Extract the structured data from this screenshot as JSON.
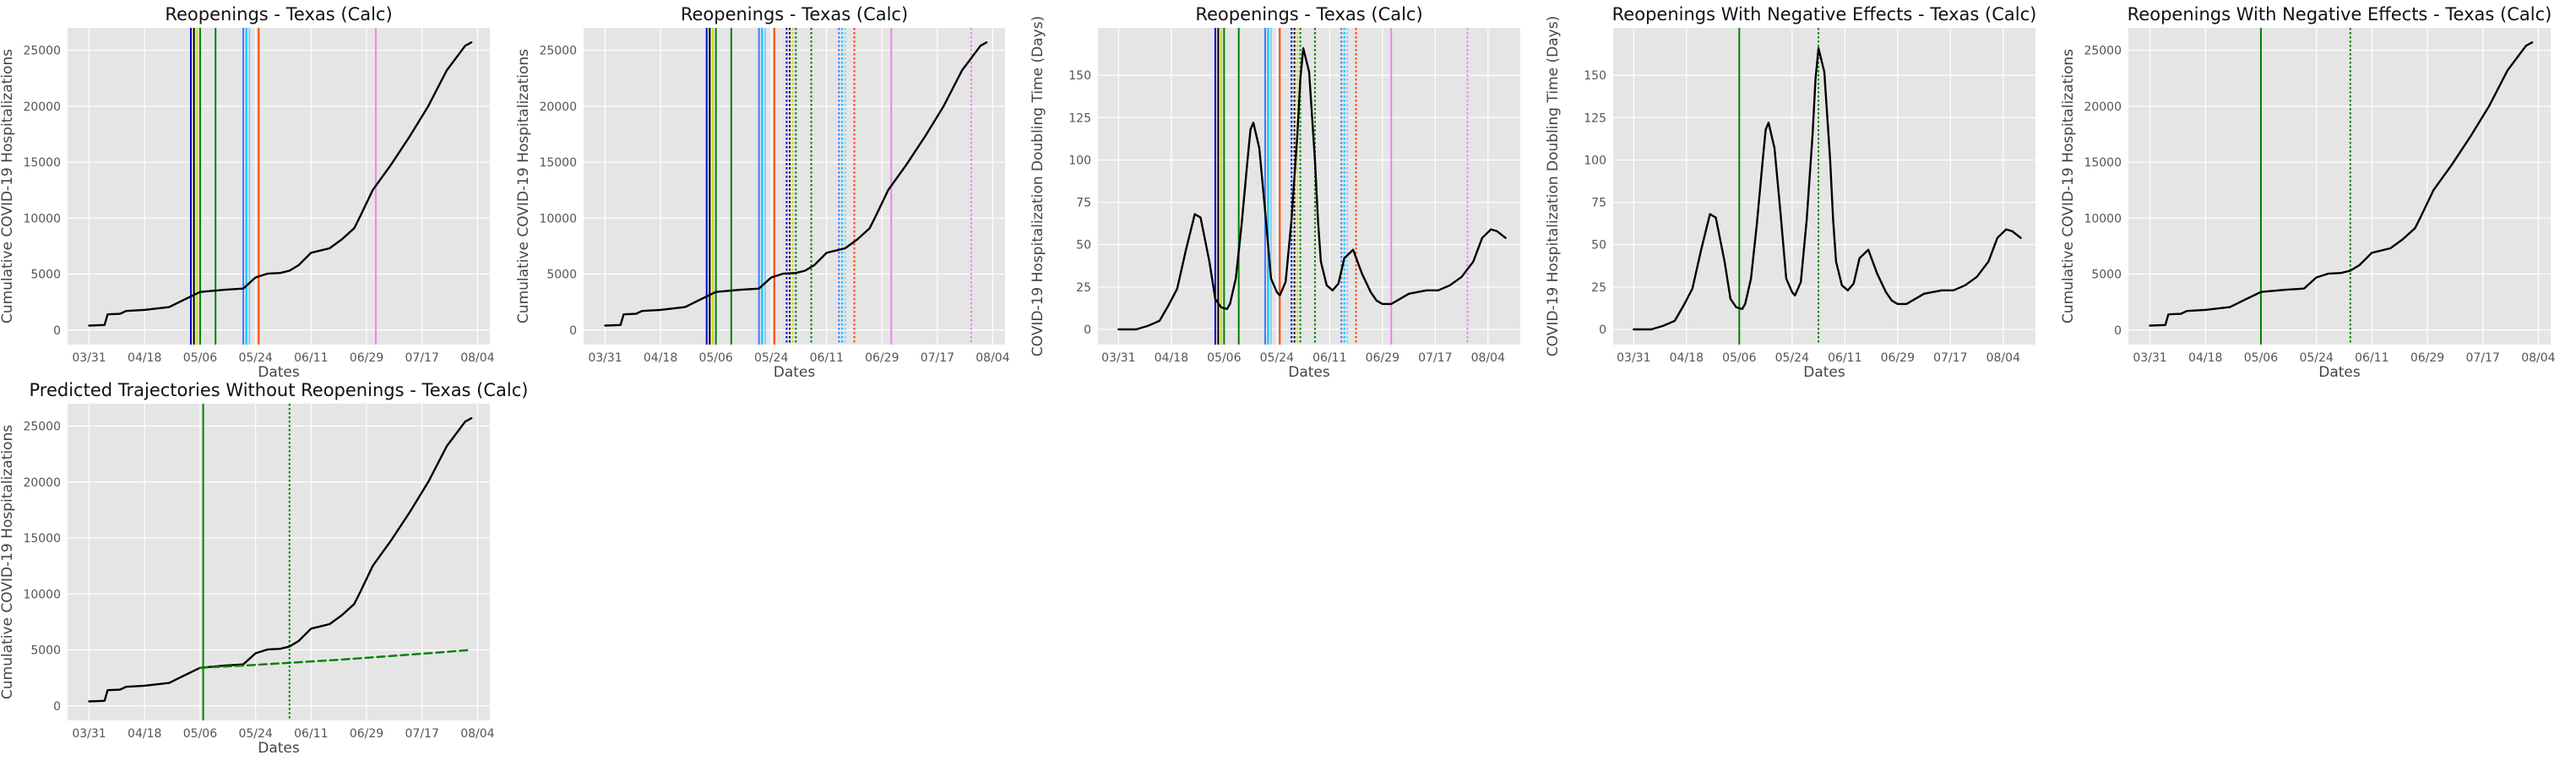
{
  "chart_data": [
    {
      "id": "p1",
      "type": "line",
      "title": "Reopenings - Texas (Calc)",
      "xlabel": "Dates",
      "ylabel": "Cumulative COVID-19 Hospitalizations",
      "x_tick_labels": [
        "03/31",
        "04/18",
        "05/06",
        "05/24",
        "06/11",
        "06/29",
        "07/17",
        "08/04"
      ],
      "x_tick_day_offsets": [
        0,
        18,
        36,
        54,
        72,
        90,
        108,
        126
      ],
      "xlim_days": [
        -7,
        130
      ],
      "yticks": [
        0,
        5000,
        10000,
        15000,
        20000,
        25000
      ],
      "ylim": [
        -1300,
        27000
      ],
      "grid": true,
      "series": [
        {
          "color": "#000000",
          "style": "solid",
          "days": [
            0,
            5,
            6,
            10,
            12,
            18,
            26,
            30,
            36,
            44,
            50,
            54,
            58,
            62,
            65,
            68,
            72,
            78,
            82,
            86,
            88,
            92,
            98,
            104,
            110,
            116,
            122,
            124
          ],
          "values": [
            400,
            450,
            1400,
            1450,
            1700,
            1800,
            2050,
            2600,
            3400,
            3600,
            3700,
            4700,
            5050,
            5100,
            5300,
            5800,
            6900,
            7300,
            8100,
            9100,
            10200,
            12500,
            14800,
            17300,
            20000,
            23200,
            25400,
            25700
          ]
        }
      ],
      "vlines": [
        {
          "day": 33,
          "color": "#0000cc",
          "style": "solid"
        },
        {
          "day": 34,
          "color": "#000000",
          "style": "solid"
        },
        {
          "day": 35,
          "color": "#ccdd00",
          "style": "solid"
        },
        {
          "day": 36,
          "color": "#008000",
          "style": "solid"
        },
        {
          "day": 41,
          "color": "#008000",
          "style": "solid"
        },
        {
          "day": 50,
          "color": "#4477ff",
          "style": "solid"
        },
        {
          "day": 51,
          "color": "#00bfff",
          "style": "solid"
        },
        {
          "day": 52,
          "color": "#87cefa",
          "style": "solid"
        },
        {
          "day": 55,
          "color": "#ff4400",
          "style": "solid"
        },
        {
          "day": 93,
          "color": "#ee82ee",
          "style": "solid"
        }
      ]
    },
    {
      "id": "p2",
      "type": "line",
      "title": "Reopenings - Texas (Calc)",
      "xlabel": "Dates",
      "ylabel": "Cumulative COVID-19 Hospitalizations",
      "x_tick_labels": [
        "03/31",
        "04/18",
        "05/06",
        "05/24",
        "06/11",
        "06/29",
        "07/17",
        "08/04"
      ],
      "x_tick_day_offsets": [
        0,
        18,
        36,
        54,
        72,
        90,
        108,
        126
      ],
      "xlim_days": [
        -7,
        130
      ],
      "yticks": [
        0,
        5000,
        10000,
        15000,
        20000,
        25000
      ],
      "ylim": [
        -1300,
        27000
      ],
      "grid": true,
      "series": [
        {
          "color": "#000000",
          "style": "solid",
          "days": [
            0,
            5,
            6,
            10,
            12,
            18,
            26,
            30,
            36,
            44,
            50,
            54,
            58,
            62,
            65,
            68,
            72,
            78,
            82,
            86,
            88,
            92,
            98,
            104,
            110,
            116,
            122,
            124
          ],
          "values": [
            400,
            450,
            1400,
            1450,
            1700,
            1800,
            2050,
            2600,
            3400,
            3600,
            3700,
            4700,
            5050,
            5100,
            5300,
            5800,
            6900,
            7300,
            8100,
            9100,
            10200,
            12500,
            14800,
            17300,
            20000,
            23200,
            25400,
            25700
          ]
        }
      ],
      "vlines": [
        {
          "day": 33,
          "color": "#0000cc",
          "style": "solid"
        },
        {
          "day": 34,
          "color": "#000000",
          "style": "solid"
        },
        {
          "day": 35,
          "color": "#ccdd00",
          "style": "solid"
        },
        {
          "day": 36,
          "color": "#008000",
          "style": "solid"
        },
        {
          "day": 41,
          "color": "#008000",
          "style": "solid"
        },
        {
          "day": 50,
          "color": "#4477ff",
          "style": "solid"
        },
        {
          "day": 51,
          "color": "#00bfff",
          "style": "solid"
        },
        {
          "day": 52,
          "color": "#87cefa",
          "style": "solid"
        },
        {
          "day": 55,
          "color": "#ff4400",
          "style": "solid"
        },
        {
          "day": 59,
          "color": "#0000cc",
          "style": "dotted"
        },
        {
          "day": 60,
          "color": "#000000",
          "style": "dotted"
        },
        {
          "day": 61,
          "color": "#ccdd00",
          "style": "dotted"
        },
        {
          "day": 62,
          "color": "#008000",
          "style": "dotted"
        },
        {
          "day": 67,
          "color": "#008000",
          "style": "dotted"
        },
        {
          "day": 76,
          "color": "#4477ff",
          "style": "dotted"
        },
        {
          "day": 77,
          "color": "#00bfff",
          "style": "dotted"
        },
        {
          "day": 78,
          "color": "#87cefa",
          "style": "dotted"
        },
        {
          "day": 81,
          "color": "#ff4400",
          "style": "dotted"
        },
        {
          "day": 93,
          "color": "#ee82ee",
          "style": "solid"
        },
        {
          "day": 119,
          "color": "#ee82ee",
          "style": "dotted"
        }
      ]
    },
    {
      "id": "p3",
      "type": "line",
      "title": "Reopenings - Texas (Calc)",
      "xlabel": "Dates",
      "ylabel": "COVID-19 Hospitalization Doubling Time (Days)",
      "x_tick_labels": [
        "03/31",
        "04/18",
        "05/06",
        "05/24",
        "06/11",
        "06/29",
        "07/17",
        "08/04"
      ],
      "x_tick_day_offsets": [
        0,
        18,
        36,
        54,
        72,
        90,
        108,
        126
      ],
      "xlim_days": [
        -7,
        137
      ],
      "yticks": [
        0,
        25,
        50,
        75,
        100,
        125,
        150
      ],
      "ylim": [
        -9,
        178
      ],
      "grid": true,
      "series": [
        {
          "color": "#000000",
          "style": "solid",
          "days": [
            0,
            6,
            10,
            14,
            17,
            20,
            23,
            26,
            28,
            31,
            33,
            35,
            37,
            38,
            40,
            42,
            44,
            45,
            46,
            48,
            50,
            52,
            54,
            55,
            57,
            59,
            61,
            62,
            63,
            65,
            67,
            68,
            69,
            71,
            73,
            75,
            77,
            80,
            83,
            86,
            88,
            90,
            93,
            96,
            99,
            102,
            105,
            109,
            113,
            117,
            121,
            124,
            127,
            129,
            132
          ],
          "values": [
            0,
            0,
            2,
            5,
            14,
            24,
            47,
            68,
            66,
            40,
            18,
            13,
            12,
            15,
            30,
            62,
            100,
            118,
            122,
            107,
            70,
            30,
            22,
            20,
            28,
            65,
            115,
            148,
            166,
            152,
            100,
            65,
            40,
            26,
            23,
            27,
            42,
            47,
            33,
            22,
            17,
            15,
            15,
            18,
            21,
            22,
            23,
            23,
            26,
            31,
            40,
            54,
            59,
            58,
            54
          ]
        }
      ],
      "vlines": [
        {
          "day": 33,
          "color": "#0000cc",
          "style": "solid"
        },
        {
          "day": 34,
          "color": "#000000",
          "style": "solid"
        },
        {
          "day": 35,
          "color": "#ccdd00",
          "style": "solid"
        },
        {
          "day": 36,
          "color": "#008000",
          "style": "solid"
        },
        {
          "day": 41,
          "color": "#008000",
          "style": "solid"
        },
        {
          "day": 50,
          "color": "#4477ff",
          "style": "solid"
        },
        {
          "day": 51,
          "color": "#00bfff",
          "style": "solid"
        },
        {
          "day": 52,
          "color": "#87cefa",
          "style": "solid"
        },
        {
          "day": 55,
          "color": "#ff4400",
          "style": "solid"
        },
        {
          "day": 59,
          "color": "#0000cc",
          "style": "dotted"
        },
        {
          "day": 60,
          "color": "#000000",
          "style": "dotted"
        },
        {
          "day": 61,
          "color": "#ccdd00",
          "style": "dotted"
        },
        {
          "day": 62,
          "color": "#008000",
          "style": "dotted"
        },
        {
          "day": 67,
          "color": "#008000",
          "style": "dotted"
        },
        {
          "day": 76,
          "color": "#4477ff",
          "style": "dotted"
        },
        {
          "day": 77,
          "color": "#00bfff",
          "style": "dotted"
        },
        {
          "day": 78,
          "color": "#87cefa",
          "style": "dotted"
        },
        {
          "day": 81,
          "color": "#ff4400",
          "style": "dotted"
        },
        {
          "day": 93,
          "color": "#ee82ee",
          "style": "solid"
        },
        {
          "day": 119,
          "color": "#ee82ee",
          "style": "dotted"
        }
      ]
    },
    {
      "id": "p4",
      "type": "line",
      "title": "Reopenings With Negative Effects - Texas (Calc)",
      "xlabel": "Dates",
      "ylabel": "COVID-19 Hospitalization Doubling Time (Days)",
      "x_tick_labels": [
        "03/31",
        "04/18",
        "05/06",
        "05/24",
        "06/11",
        "06/29",
        "07/17",
        "08/04"
      ],
      "x_tick_day_offsets": [
        0,
        18,
        36,
        54,
        72,
        90,
        108,
        126
      ],
      "xlim_days": [
        -7,
        137
      ],
      "yticks": [
        0,
        25,
        50,
        75,
        100,
        125,
        150
      ],
      "ylim": [
        -9,
        178
      ],
      "grid": true,
      "series": [
        {
          "color": "#000000",
          "style": "solid",
          "days": [
            0,
            6,
            10,
            14,
            17,
            20,
            23,
            26,
            28,
            31,
            33,
            35,
            37,
            38,
            40,
            42,
            44,
            45,
            46,
            48,
            50,
            52,
            54,
            55,
            57,
            59,
            61,
            62,
            63,
            65,
            67,
            68,
            69,
            71,
            73,
            75,
            77,
            80,
            83,
            86,
            88,
            90,
            93,
            96,
            99,
            102,
            105,
            109,
            113,
            117,
            121,
            124,
            127,
            129,
            132
          ],
          "values": [
            0,
            0,
            2,
            5,
            14,
            24,
            47,
            68,
            66,
            40,
            18,
            13,
            12,
            15,
            30,
            62,
            100,
            118,
            122,
            107,
            70,
            30,
            22,
            20,
            28,
            65,
            115,
            148,
            166,
            152,
            100,
            65,
            40,
            26,
            23,
            27,
            42,
            47,
            33,
            22,
            17,
            15,
            15,
            18,
            21,
            22,
            23,
            23,
            26,
            31,
            40,
            54,
            59,
            58,
            54
          ]
        }
      ],
      "vlines": [
        {
          "day": 36,
          "color": "#008000",
          "style": "solid"
        },
        {
          "day": 63,
          "color": "#008000",
          "style": "dotted"
        }
      ]
    },
    {
      "id": "p5",
      "type": "line",
      "title": "Reopenings With Negative Effects - Texas (Calc)",
      "xlabel": "Dates",
      "ylabel": "Cumulative COVID-19 Hospitalizations",
      "x_tick_labels": [
        "03/31",
        "04/18",
        "05/06",
        "05/24",
        "06/11",
        "06/29",
        "07/17",
        "08/04"
      ],
      "x_tick_day_offsets": [
        0,
        18,
        36,
        54,
        72,
        90,
        108,
        126
      ],
      "xlim_days": [
        -7,
        130
      ],
      "yticks": [
        0,
        5000,
        10000,
        15000,
        20000,
        25000
      ],
      "ylim": [
        -1300,
        27000
      ],
      "grid": true,
      "series": [
        {
          "color": "#000000",
          "style": "solid",
          "days": [
            0,
            5,
            6,
            10,
            12,
            18,
            26,
            30,
            36,
            44,
            50,
            54,
            58,
            62,
            65,
            68,
            72,
            78,
            82,
            86,
            88,
            92,
            98,
            104,
            110,
            116,
            122,
            124
          ],
          "values": [
            400,
            450,
            1400,
            1450,
            1700,
            1800,
            2050,
            2600,
            3400,
            3600,
            3700,
            4700,
            5050,
            5100,
            5300,
            5800,
            6900,
            7300,
            8100,
            9100,
            10200,
            12500,
            14800,
            17300,
            20000,
            23200,
            25400,
            25700
          ]
        }
      ],
      "vlines": [
        {
          "day": 36,
          "color": "#008000",
          "style": "solid"
        },
        {
          "day": 65,
          "color": "#008000",
          "style": "dotted"
        }
      ]
    },
    {
      "id": "p6",
      "type": "line",
      "title": "Predicted Trajectories Without Reopenings - Texas (Calc)",
      "xlabel": "Dates",
      "ylabel": "Cumulative COVID-19 Hospitalizations",
      "x_tick_labels": [
        "03/31",
        "04/18",
        "05/06",
        "05/24",
        "06/11",
        "06/29",
        "07/17",
        "08/04"
      ],
      "x_tick_day_offsets": [
        0,
        18,
        36,
        54,
        72,
        90,
        108,
        126
      ],
      "xlim_days": [
        -7,
        130
      ],
      "yticks": [
        0,
        5000,
        10000,
        15000,
        20000,
        25000
      ],
      "ylim": [
        -1300,
        27000
      ],
      "grid": true,
      "series": [
        {
          "color": "#000000",
          "style": "solid",
          "days": [
            0,
            5,
            6,
            10,
            12,
            18,
            26,
            30,
            36,
            44,
            50,
            54,
            58,
            62,
            65,
            68,
            72,
            78,
            82,
            86,
            88,
            92,
            98,
            104,
            110,
            116,
            122,
            124
          ],
          "values": [
            400,
            450,
            1400,
            1450,
            1700,
            1800,
            2050,
            2600,
            3400,
            3600,
            3700,
            4700,
            5050,
            5100,
            5300,
            5800,
            6900,
            7300,
            8100,
            9100,
            10200,
            12500,
            14800,
            17300,
            20000,
            23200,
            25400,
            25700
          ]
        },
        {
          "color": "#008000",
          "style": "dashed",
          "days": [
            36,
            50,
            65,
            80,
            95,
            110,
            124
          ],
          "values": [
            3400,
            3600,
            3850,
            4100,
            4400,
            4700,
            5000
          ]
        }
      ],
      "vlines": [
        {
          "day": 37,
          "color": "#008000",
          "style": "solid"
        },
        {
          "day": 65,
          "color": "#008000",
          "style": "dotted"
        }
      ]
    }
  ]
}
